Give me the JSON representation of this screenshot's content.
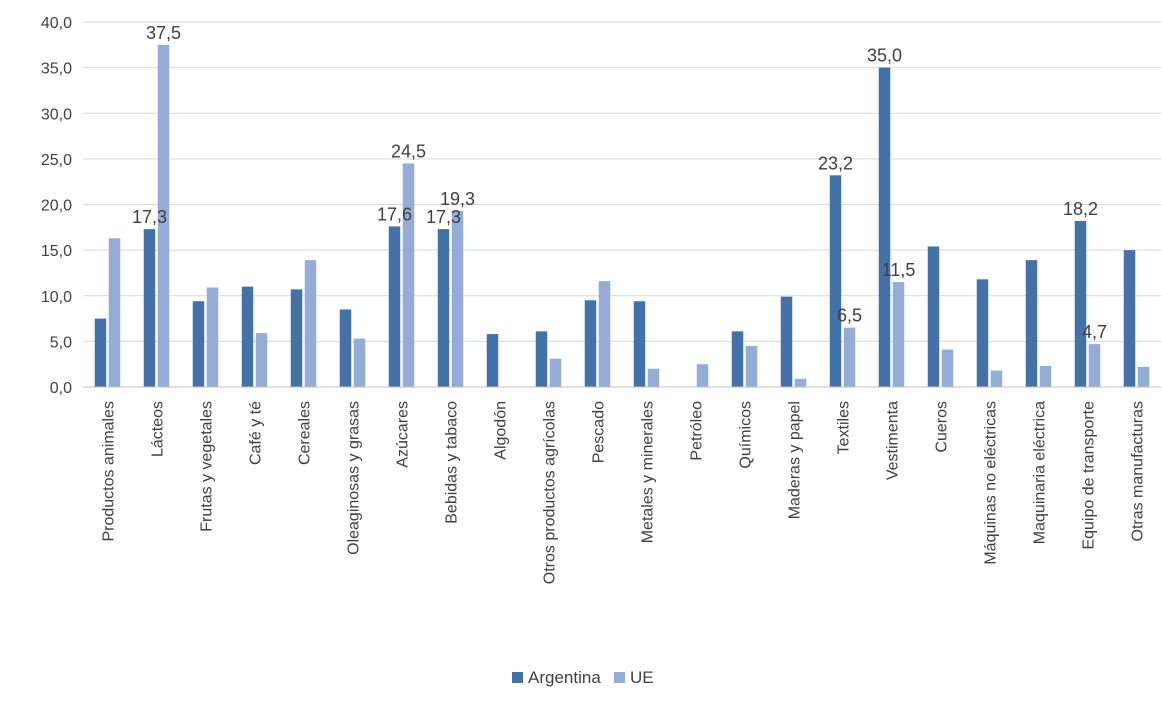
{
  "chart_data": {
    "type": "bar",
    "title": "",
    "xlabel": "",
    "ylabel": "",
    "ylim": [
      0,
      40
    ],
    "ytick_step": 5,
    "ytick_labels": [
      "0,0",
      "5,0",
      "10,0",
      "15,0",
      "20,0",
      "25,0",
      "30,0",
      "35,0",
      "40,0"
    ],
    "grid": true,
    "legend_position": "bottom",
    "categories": [
      "Productos animales",
      "Lácteos",
      "Frutas y vegetales",
      "Café y té",
      "Cereales",
      "Oleaginosas y grasas",
      "Azúcares",
      "Bebidas y tabaco",
      "Algodón",
      "Otros productos agrícolas",
      "Pescado",
      "Metales y minerales",
      "Petróleo",
      "Químicos",
      "Maderas y papel",
      "Textiles",
      "Vestimenta",
      "Cueros",
      "Máquinas no eléctricas",
      "Maquinaria eléctrica",
      "Equipo de transporte",
      "Otras manufacturas"
    ],
    "series": [
      {
        "name": "Argentina",
        "color": "#4472a8",
        "values": [
          7.5,
          17.3,
          9.4,
          11.0,
          10.7,
          8.5,
          17.6,
          17.3,
          5.8,
          6.1,
          9.5,
          9.4,
          0.0,
          6.1,
          9.9,
          23.2,
          35.0,
          15.4,
          11.8,
          13.9,
          18.2,
          15.0
        ],
        "data_labels": [
          null,
          "17,3",
          null,
          null,
          null,
          null,
          "17,6",
          "17,3",
          null,
          null,
          null,
          null,
          null,
          null,
          null,
          "23,2",
          "35,0",
          null,
          null,
          null,
          "18,2",
          null
        ]
      },
      {
        "name": "UE",
        "color": "#94acd6",
        "values": [
          16.3,
          37.5,
          10.9,
          5.9,
          13.9,
          5.3,
          24.5,
          19.3,
          0.0,
          3.1,
          11.6,
          2.0,
          2.5,
          4.5,
          0.9,
          6.5,
          11.5,
          4.1,
          1.8,
          2.3,
          4.7,
          2.2
        ],
        "data_labels": [
          null,
          "37,5",
          null,
          null,
          null,
          null,
          "24,5",
          "19,3",
          null,
          null,
          null,
          null,
          null,
          null,
          null,
          "6,5",
          "11,5",
          null,
          null,
          null,
          "4,7",
          null
        ]
      }
    ]
  }
}
